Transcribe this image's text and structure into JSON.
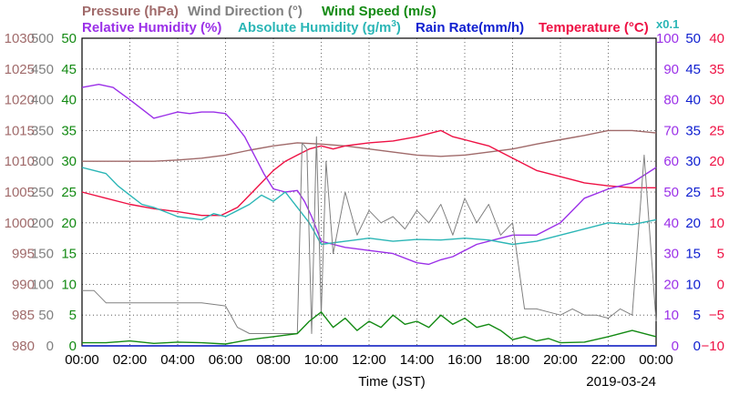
{
  "legend": {
    "pressure": {
      "label": "Pressure (hPa)",
      "color": "#a06a6a"
    },
    "wind_direction": {
      "label": "Wind Direction (°)",
      "color": "#808080"
    },
    "wind_speed": {
      "label": "Wind Speed (m/s)",
      "color": "#138a13"
    },
    "relative_humidity": {
      "label": "Relative Humidity (%)",
      "color": "#9b30e8"
    },
    "absolute_humidity_main": {
      "label": "Absolute Humidity (g/m",
      "color": "#2bb6b6"
    },
    "absolute_humidity_sup": "3",
    "absolute_humidity_close": ")",
    "rain_rate": {
      "label": "Rain Rate(mm/h)",
      "color": "#1020d0"
    },
    "temperature": {
      "label": "Temperature (°C)",
      "color": "#ee1144"
    },
    "scale_note": "x0.1"
  },
  "x_axis": {
    "label": "Time (JST)",
    "date": "2019-03-24",
    "ticks": [
      "00:00",
      "02:00",
      "04:00",
      "06:00",
      "08:00",
      "10:00",
      "12:00",
      "14:00",
      "16:00",
      "18:00",
      "20:00",
      "22:00",
      "00:00"
    ]
  },
  "left_axes": {
    "pressure": {
      "ticks": [
        "1030",
        "1025",
        "1020",
        "1015",
        "1010",
        "1005",
        "1000",
        "995",
        "990",
        "985",
        "980"
      ],
      "color": "#a06a6a"
    },
    "wind_direction": {
      "ticks": [
        "500",
        "450",
        "400",
        "350",
        "300",
        "250",
        "200",
        "150",
        "100",
        "50",
        "0"
      ],
      "color": "#808080"
    },
    "wind_speed": {
      "ticks": [
        "50",
        "45",
        "40",
        "35",
        "30",
        "25",
        "20",
        "15",
        "10",
        "5",
        "0"
      ],
      "color": "#138a13"
    }
  },
  "right_axes": {
    "relative_humidity": {
      "ticks": [
        "100",
        "90",
        "80",
        "70",
        "60",
        "50",
        "40",
        "30",
        "20",
        "10",
        "0"
      ],
      "color": "#9b30e8"
    },
    "rain_rate": {
      "ticks": [
        "50",
        "45",
        "40",
        "35",
        "30",
        "25",
        "20",
        "15",
        "10",
        "5",
        "0"
      ],
      "color": "#1020d0"
    },
    "temperature": {
      "ticks": [
        "40",
        "35",
        "30",
        "25",
        "20",
        "15",
        "10",
        "5",
        "0",
        "−5",
        "−10"
      ],
      "color": "#ee1144"
    }
  },
  "chart_data": {
    "type": "line",
    "x_unit": "hours since 00:00",
    "xlim": [
      0,
      24
    ],
    "grid": true,
    "series": [
      {
        "name": "Pressure (hPa)",
        "ylim": [
          980,
          1030
        ],
        "x": [
          0,
          1,
          2,
          3,
          4,
          5,
          6,
          7,
          8,
          9,
          10,
          11,
          12,
          13,
          14,
          15,
          16,
          17,
          18,
          19,
          20,
          21,
          22,
          23,
          24
        ],
        "values": [
          1010,
          1010,
          1010,
          1010,
          1010.2,
          1010.5,
          1011,
          1011.8,
          1012.5,
          1013,
          1012.8,
          1012.5,
          1012,
          1011.5,
          1011,
          1010.8,
          1011,
          1011.5,
          1012,
          1012.8,
          1013.5,
          1014.2,
          1015,
          1015,
          1014.6
        ]
      },
      {
        "name": "Temperature (°C)",
        "ylim": [
          -10,
          40
        ],
        "x": [
          0,
          1,
          2,
          3,
          4,
          5,
          5.8,
          6.5,
          7,
          7.5,
          8,
          8.5,
          9,
          9.5,
          10,
          10.5,
          11,
          12,
          13,
          14,
          15,
          15.5,
          16,
          16.5,
          17,
          18,
          19,
          20,
          21,
          22,
          23,
          24
        ],
        "values": [
          15,
          14,
          13,
          12.3,
          11.8,
          11.2,
          11.2,
          12.5,
          14.5,
          16.5,
          18.5,
          20,
          21,
          22,
          22.5,
          22,
          22.5,
          23,
          23.3,
          24,
          25,
          24,
          23.5,
          23,
          22.5,
          20.5,
          18.5,
          17.5,
          16.5,
          16,
          15.7,
          15.7
        ]
      },
      {
        "name": "Relative Humidity (%)",
        "ylim": [
          0,
          100
        ],
        "x": [
          0,
          0.7,
          1.3,
          2,
          2.5,
          3,
          3.5,
          4,
          4.5,
          5,
          5.5,
          6,
          6.3,
          6.8,
          7.2,
          7.6,
          8,
          8.5,
          9,
          9.3,
          9.6,
          10,
          10.5,
          11,
          12,
          13,
          14,
          14.5,
          15,
          15.5,
          16,
          16.5,
          17,
          18,
          19,
          20,
          21,
          22,
          23,
          24
        ],
        "values": [
          84,
          85,
          84,
          80,
          77,
          74,
          75,
          76,
          75.5,
          76,
          76,
          75.5,
          73,
          68,
          62,
          56,
          51,
          50,
          50.5,
          47,
          42,
          34,
          33,
          32,
          31,
          30,
          27,
          26.5,
          28,
          29,
          31,
          33,
          34,
          36,
          36,
          40,
          48,
          51,
          53,
          58
        ]
      },
      {
        "name": "Absolute Humidity (g/m3)",
        "ylim": [
          0,
          50
        ],
        "x": [
          0,
          0.5,
          1,
          1.5,
          2,
          2.5,
          3,
          4,
          5,
          5.5,
          6,
          7,
          7.5,
          8,
          8.5,
          9,
          9.5,
          10,
          11,
          12,
          13,
          14,
          15,
          16,
          17,
          18,
          19,
          20,
          21,
          22,
          23,
          24
        ],
        "values": [
          29,
          28.5,
          28,
          26,
          24.5,
          23,
          22.5,
          21,
          20.5,
          21.5,
          21,
          23,
          24.5,
          23.5,
          25,
          22.5,
          20,
          16.5,
          17,
          17.5,
          17,
          17.3,
          17.2,
          17.5,
          17.2,
          16.5,
          17,
          18,
          19,
          20,
          19.7,
          20.5
        ]
      },
      {
        "name": "Wind Direction (°)",
        "ylim": [
          0,
          500
        ],
        "x": [
          0,
          0.5,
          1,
          1.5,
          3,
          5,
          6,
          6.5,
          7,
          7.5,
          8,
          8.5,
          9,
          9.2,
          9.4,
          9.6,
          9.8,
          10,
          10.2,
          10.5,
          11,
          11.5,
          12,
          12.5,
          13,
          13.5,
          14,
          14.5,
          15,
          15.5,
          16,
          16.5,
          17,
          17.5,
          18,
          18.5,
          19,
          19.5,
          20,
          20.5,
          21,
          21.5,
          22,
          22.5,
          23,
          23.5,
          24
        ],
        "values": [
          90,
          90,
          70,
          70,
          70,
          70,
          65,
          30,
          20,
          20,
          20,
          20,
          20,
          330,
          320,
          20,
          340,
          50,
          300,
          150,
          250,
          180,
          220,
          200,
          210,
          190,
          220,
          200,
          230,
          180,
          240,
          200,
          230,
          180,
          200,
          60,
          60,
          55,
          50,
          60,
          50,
          50,
          45,
          60,
          50,
          310,
          40
        ]
      },
      {
        "name": "Wind Speed (m/s)",
        "ylim": [
          0,
          50
        ],
        "x": [
          0,
          1,
          2,
          3,
          4,
          5,
          6,
          7,
          8,
          9,
          9.5,
          10,
          10.5,
          11,
          11.5,
          12,
          12.5,
          13,
          13.5,
          14,
          14.5,
          15,
          15.5,
          16,
          16.5,
          17,
          17.5,
          18,
          18.5,
          19,
          19.5,
          20,
          21,
          22,
          23,
          24
        ],
        "values": [
          0.5,
          0.5,
          0.8,
          0.4,
          0.6,
          0.5,
          0.3,
          1,
          1.5,
          2,
          4,
          5.5,
          3,
          4.5,
          2.5,
          4,
          3,
          5,
          3.5,
          4,
          3,
          5,
          3.5,
          4.5,
          3,
          3.5,
          2.5,
          1,
          1.5,
          0.8,
          1.2,
          0.5,
          0.6,
          1.5,
          2.5,
          1.5
        ]
      },
      {
        "name": "Rain Rate(mm/h)",
        "ylim": [
          0,
          50
        ],
        "x": [
          0,
          24
        ],
        "values": [
          0,
          0
        ]
      }
    ]
  }
}
